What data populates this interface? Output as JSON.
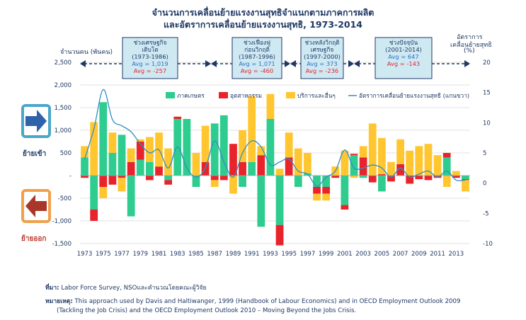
{
  "title_line1": "จำนวนการเคลื่อนย้ายแรงงานสุทธิจำแนกตามภาคการผลิต",
  "title_line2": "และอัตราการเคลื่อนย้ายแรงงานสุทธิ, 1973-2014",
  "left_axis_label": "จำนวนคน (พันคน)",
  "right_axis_label_1": "อัตราการ",
  "right_axis_label_2": "เคลื่อนย้ายสุทธิ",
  "right_axis_label_3": "(%)",
  "side_in_label": "ย้ายเข้า",
  "side_out_label": "ย้ายออก",
  "colors": {
    "agriculture": "#2ecc8f",
    "industry": "#e8232b",
    "services": "#ffc62f",
    "rate_line": "#2f8fc4",
    "period_box": "#cfe9f3",
    "title": "#1f3864"
  },
  "legend": {
    "agriculture": "ภาคเกษตร",
    "industry": "อุตสาหกรรม",
    "services": "บริการและอื่นๆ",
    "rate": "อัตราการเคลื่อนย้ายแรงงานสุทธิ (แกนขวา)"
  },
  "periods": [
    {
      "l1": "ช่วงเศรษฐกิจ",
      "l2": "เติบโต",
      "l3": "(1973-1986)",
      "avg1": "Avg = 1,019",
      "avg2": "Avg = -257"
    },
    {
      "l1": "ช่วงเฟื่องฟู",
      "l2": "ก่อนวิกฤติ",
      "l3": "(1987-1996)",
      "avg1": "Avg = 1,071",
      "avg2": "Avg = -460"
    },
    {
      "l1": "ช่วงหลังวิกฤติ",
      "l2": "เศรษฐกิจ",
      "l3": "(1997-2000)",
      "avg1": "Avg = 373",
      "avg2": "Avg = -236"
    },
    {
      "l1": "ช่วงปัจจุบัน",
      "l2": "",
      "l3": "(2001-2014)",
      "avg1": "Avg = 647",
      "avg2": "Avg = -143"
    }
  ],
  "source_label": "ที่มา:",
  "source_text": "Labor Force Survey, NSOและคำนวณโดยคณะผู้วิจัย",
  "note_label": "หมายเหตุ:",
  "note_text_1": "This approach used by Davis and Haltiwanger, 1999 (Handbook of Labour Economics) and in OECD Employment Outlook 2009",
  "note_text_2": "(Tackling the Job Crisis) and the OECD Employment Outlook 2010 – Moving Beyond the Jobs Crisis.",
  "chart_data": {
    "type": "bar",
    "stacked": true,
    "years": [
      1973,
      1974,
      1975,
      1976,
      1977,
      1978,
      1979,
      1980,
      1981,
      1982,
      1983,
      1984,
      1985,
      1986,
      1987,
      1988,
      1989,
      1990,
      1991,
      1992,
      1993,
      1994,
      1995,
      1996,
      1997,
      1998,
      1999,
      2000,
      2001,
      2002,
      2003,
      2004,
      2005,
      2006,
      2007,
      2008,
      2009,
      2010,
      2011,
      2012,
      2013,
      2014
    ],
    "x_tick_labels": [
      "1973",
      "1975",
      "1977",
      "1979",
      "1981",
      "1983",
      "1985",
      "1987",
      "1989",
      "1991",
      "1993",
      "1995",
      "1997",
      "1999",
      "2001",
      "2003",
      "2005",
      "2007",
      "2009",
      "2011",
      "2013"
    ],
    "series": [
      {
        "name": "ภาคเกษตร",
        "values": [
          400,
          -750,
          1620,
          500,
          900,
          -900,
          350,
          300,
          0,
          -100,
          1250,
          1250,
          -250,
          0,
          1150,
          1330,
          0,
          -250,
          300,
          -1130,
          1250,
          -1090,
          0,
          -250,
          50,
          -250,
          -250,
          0,
          -650,
          450,
          -50,
          0,
          -350,
          0,
          0,
          0,
          0,
          0,
          0,
          400,
          0,
          -80
        ]
      },
      {
        "name": "อุตสาหกรรม",
        "values": [
          -50,
          -250,
          -250,
          -200,
          -50,
          300,
          400,
          -100,
          200,
          -100,
          50,
          0,
          0,
          300,
          -100,
          -100,
          700,
          300,
          0,
          450,
          0,
          -450,
          400,
          0,
          0,
          -150,
          -150,
          -50,
          -100,
          30,
          400,
          -150,
          30,
          -130,
          250,
          -180,
          -80,
          -100,
          -50,
          100,
          -50,
          -20
        ]
      },
      {
        "name": "บริการและอื่นๆ",
        "values": [
          250,
          1180,
          -250,
          450,
          -300,
          300,
          50,
          550,
          750,
          600,
          0,
          0,
          500,
          800,
          -150,
          0,
          -400,
          700,
          1450,
          200,
          550,
          150,
          550,
          600,
          450,
          -150,
          -150,
          200,
          550,
          -50,
          250,
          1150,
          800,
          300,
          550,
          550,
          650,
          700,
          450,
          -250,
          100,
          -250
        ]
      }
    ],
    "rate_series": {
      "name": "อัตราการเคลื่อนย้ายแรงงานสุทธิ (แกนขวา)",
      "axis": "right",
      "values": [
        4,
        9,
        15.5,
        10.5,
        9.5,
        8.5,
        6.5,
        5,
        5.5,
        2.5,
        6,
        2.5,
        1,
        2.5,
        7,
        3.5,
        1,
        5,
        7,
        6,
        3,
        3.5,
        4,
        2,
        1.5,
        -0.5,
        1,
        2,
        5.5,
        2.5,
        2.5,
        3,
        2.5,
        1,
        2.5,
        1,
        1.5,
        2,
        1,
        2,
        0.5,
        0.5
      ]
    },
    "y_left": {
      "min": -1500,
      "max": 2500,
      "ticks": [
        "2,500",
        "2,000",
        "1,500",
        "1,000",
        "500",
        "-",
        "-500",
        "-1,000",
        "-1,500"
      ]
    },
    "y_right": {
      "min": -10,
      "max": 20,
      "ticks": [
        "20",
        "15",
        "10",
        "5",
        "0",
        "-5",
        "-10"
      ]
    },
    "legend_position": "top"
  }
}
